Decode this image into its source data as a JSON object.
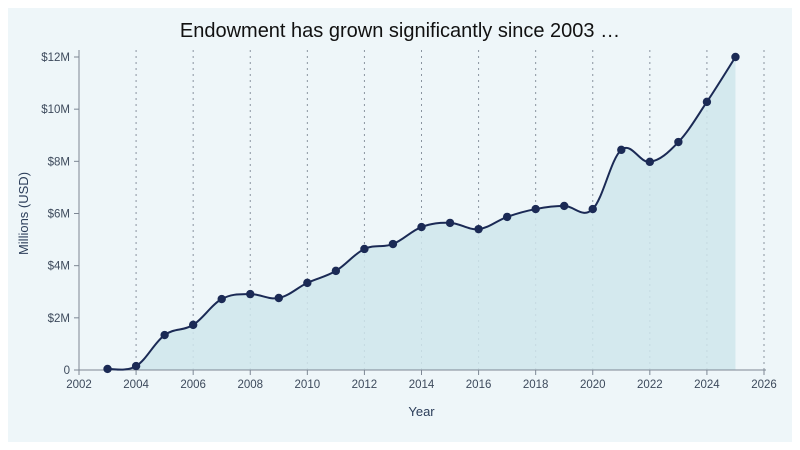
{
  "chart_data": {
    "type": "area",
    "title": "Endowment has grown significantly since 2003 …",
    "xlabel": "Year",
    "ylabel": "Millions  (USD)",
    "xlim": [
      2002,
      2026
    ],
    "ylim": [
      0,
      12
    ],
    "x_ticks": [
      2002,
      2004,
      2006,
      2008,
      2010,
      2012,
      2014,
      2016,
      2018,
      2020,
      2022,
      2024,
      2026
    ],
    "x_tick_labels": [
      "2002",
      "2004",
      "2006",
      "2008",
      "2010",
      "2012",
      "2014",
      "2016",
      "2018",
      "2020",
      "2022",
      "2024",
      "2026"
    ],
    "y_ticks": [
      0,
      2,
      4,
      6,
      8,
      10,
      12
    ],
    "y_tick_labels": [
      "0",
      "$2M",
      "$4M",
      "$6M",
      "$8M",
      "$10M",
      "$12M"
    ],
    "grid": "vertical dotted",
    "series": [
      {
        "name": "Endowment",
        "x": [
          2003,
          2004,
          2005,
          2006,
          2007,
          2008,
          2009,
          2010,
          2011,
          2012,
          2013,
          2014,
          2015,
          2016,
          2017,
          2018,
          2019,
          2020,
          2021,
          2022,
          2023,
          2024,
          2025
        ],
        "values": [
          0.04,
          0.15,
          1.34,
          1.73,
          2.72,
          2.91,
          2.76,
          3.34,
          3.8,
          4.64,
          4.83,
          5.48,
          5.64,
          5.4,
          5.87,
          6.17,
          6.29,
          6.17,
          8.44,
          7.98,
          8.74,
          10.28,
          12.0
        ]
      }
    ],
    "colors": {
      "line": "#1b2a55",
      "fill": "#cfe6ec",
      "grid": "#8a94a0"
    }
  }
}
